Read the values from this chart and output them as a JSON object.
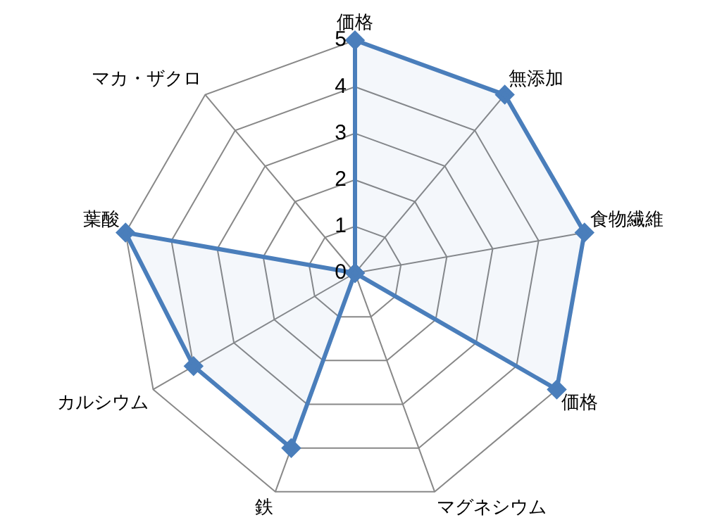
{
  "chart_data": {
    "type": "radar",
    "categories": [
      "価格",
      "無添加",
      "食物繊維",
      "価格",
      "マグネシウム",
      "鉄",
      "カルシウム",
      "葉酸",
      "マカ・ザクロ"
    ],
    "series": [
      {
        "color": "#4a7ebb",
        "values": [
          5,
          5,
          5,
          5,
          0,
          4,
          4,
          5,
          0
        ]
      }
    ],
    "ylim": [
      0,
      5
    ],
    "yticks": [
      0,
      1,
      2,
      3,
      4,
      5
    ],
    "grid": true,
    "legend": false,
    "marker": "diamond"
  }
}
